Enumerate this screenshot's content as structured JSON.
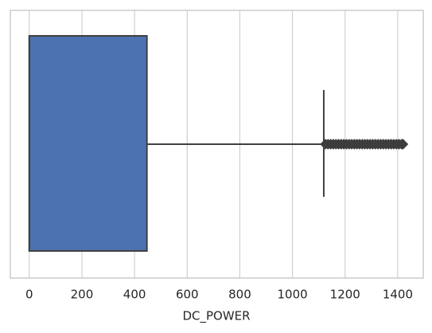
{
  "chart_data": {
    "type": "box",
    "xlabel": "DC_POWER",
    "orientation": "horizontal",
    "color": "#4c72b0",
    "edge_color": "#404040",
    "box": {
      "min": 0,
      "q1": 0,
      "median": 0,
      "q3": 447,
      "max": 1119,
      "outliers": [
        1125,
        1135,
        1145,
        1155,
        1165,
        1175,
        1185,
        1195,
        1205,
        1215,
        1225,
        1235,
        1245,
        1255,
        1265,
        1275,
        1285,
        1295,
        1305,
        1315,
        1325,
        1335,
        1345,
        1355,
        1365,
        1375,
        1385,
        1395,
        1405,
        1415,
        1420
      ]
    },
    "xlim": [
      -72,
      1497
    ],
    "xticks": [
      0,
      200,
      400,
      600,
      800,
      1000,
      1200,
      1400
    ],
    "grid": true
  }
}
